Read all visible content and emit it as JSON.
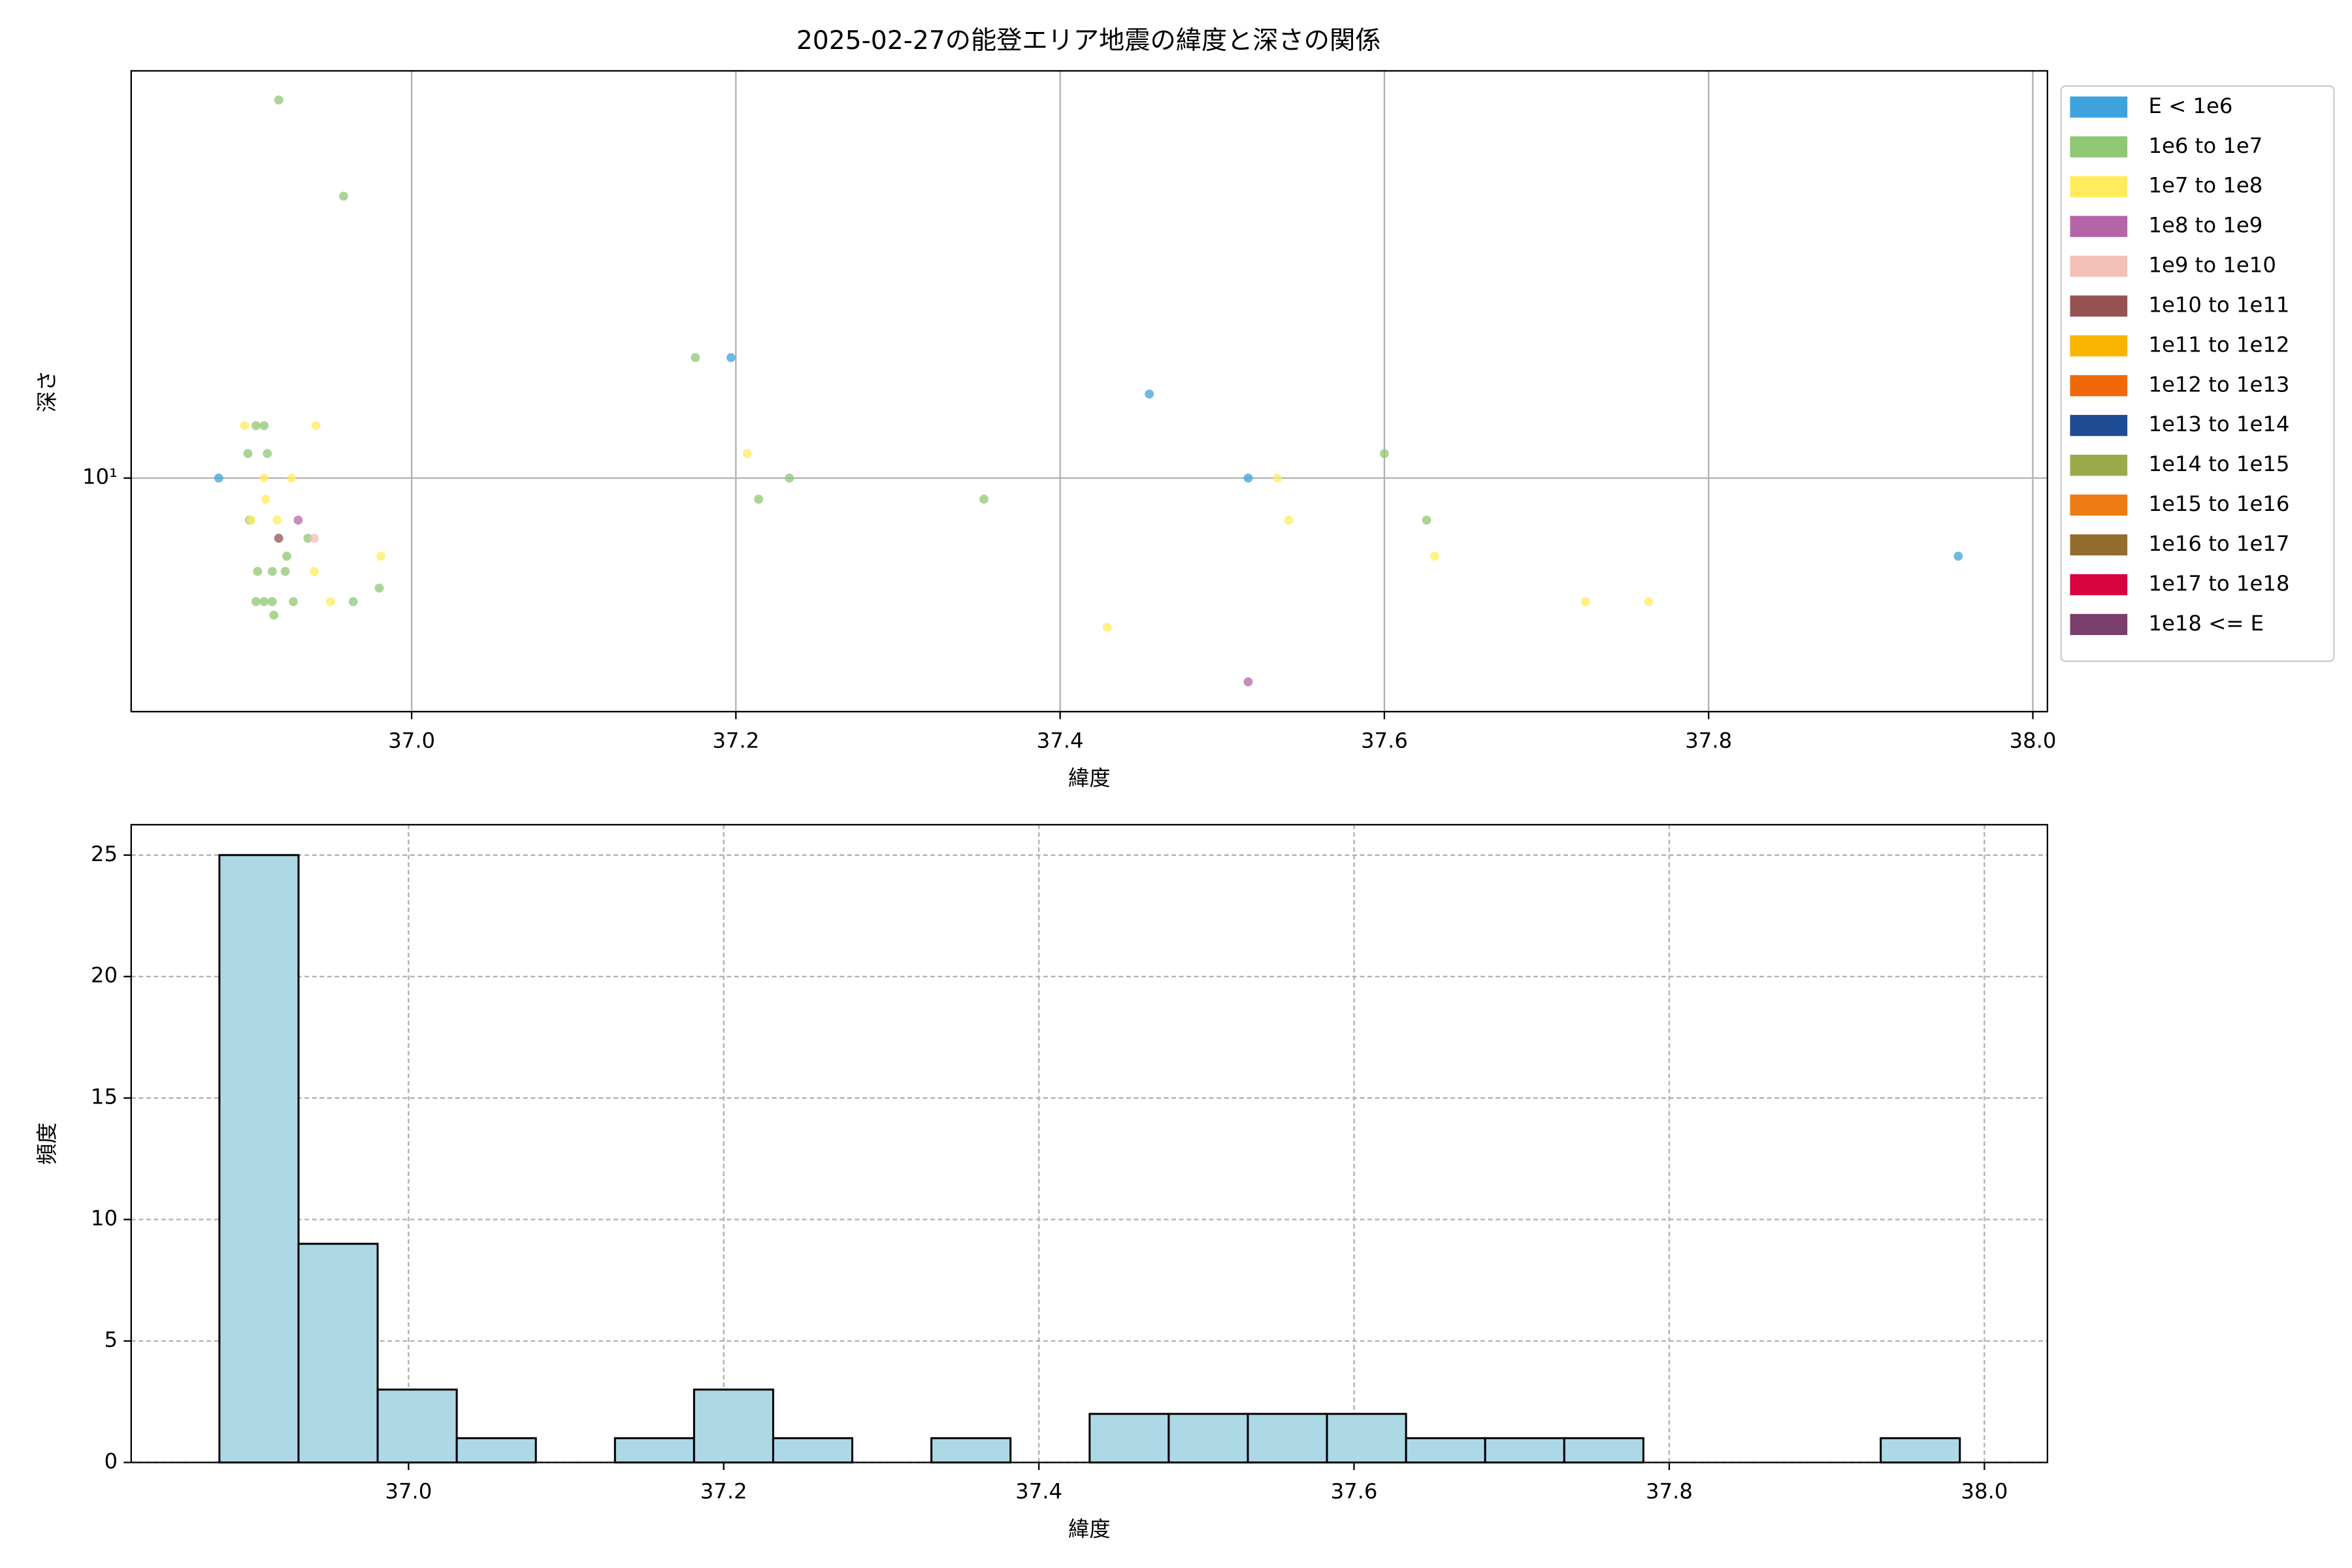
{
  "chart_data": [
    {
      "type": "scatter",
      "title": "2025-02-27の能登エリア地震の緯度と深さの関係",
      "xlabel": "緯度",
      "ylabel": "深さ",
      "xlim": [
        36.827,
        38.009
      ],
      "ylim": [
        3.7,
        56.6
      ],
      "yscale": "log",
      "grid": true,
      "legend": "outside right",
      "xticks": [
        {
          "value": 37.0,
          "label": "37.0"
        },
        {
          "value": 37.2,
          "label": "37.2"
        },
        {
          "value": 37.4,
          "label": "37.4"
        },
        {
          "value": 37.6,
          "label": "37.6"
        },
        {
          "value": 37.8,
          "label": "37.8"
        },
        {
          "value": 38.0,
          "label": "38.0"
        }
      ],
      "yticks": [
        {
          "value": 10,
          "label": "10¹"
        }
      ],
      "series": [
        {
          "name": "E < 1e6",
          "color": "#3ea3dc",
          "x": [
            36.881,
            37.197,
            37.455,
            37.516,
            37.954
          ],
          "values": [
            10.0,
            16.7,
            14.3,
            10.0,
            7.17
          ]
        },
        {
          "name": "1e6 to 1e7",
          "color": "#8fc774",
          "x": [
            36.918,
            36.958,
            37.175,
            36.904,
            36.909,
            36.899,
            36.911,
            37.214,
            37.233,
            37.353,
            37.6,
            37.626,
            36.9,
            36.936,
            36.923,
            36.905,
            36.914,
            36.922,
            36.98,
            36.904,
            36.909,
            36.914,
            36.927,
            36.964,
            36.915
          ],
          "values": [
            50.0,
            33.2,
            16.7,
            12.5,
            12.5,
            11.1,
            11.1,
            9.14,
            10.0,
            9.14,
            11.1,
            8.36,
            8.36,
            7.74,
            7.17,
            6.72,
            6.72,
            6.72,
            6.26,
            5.91,
            5.91,
            5.91,
            5.91,
            5.91,
            5.58
          ]
        },
        {
          "name": "1e7 to 1e8",
          "color": "#ffec5c",
          "x": [
            36.897,
            36.941,
            37.207,
            36.909,
            36.926,
            36.91,
            36.901,
            36.917,
            36.94,
            36.981,
            36.95,
            37.534,
            37.541,
            37.631,
            37.724,
            37.763,
            37.429
          ],
          "values": [
            12.5,
            12.5,
            11.1,
            10.0,
            10.0,
            9.14,
            8.36,
            8.36,
            6.72,
            7.17,
            5.91,
            10.0,
            8.36,
            7.17,
            5.91,
            5.91,
            5.3
          ]
        },
        {
          "name": "1e8 to 1e9",
          "color": "#b565a7",
          "x": [
            36.93,
            37.516
          ],
          "values": [
            8.36,
            4.2
          ]
        },
        {
          "name": "1e9 to 1e10",
          "color": "#f5c0b8",
          "x": [
            36.94
          ],
          "values": [
            7.74
          ]
        },
        {
          "name": "1e10 to 1e11",
          "color": "#955251",
          "x": [
            36.918
          ],
          "values": [
            7.74
          ]
        },
        {
          "name": "1e11 to 1e12",
          "color": "#f7b500",
          "x": [],
          "values": []
        },
        {
          "name": "1e12 to 1e13",
          "color": "#f0680a",
          "x": [],
          "values": []
        },
        {
          "name": "1e13 to 1e14",
          "color": "#1e4c94",
          "x": [],
          "values": []
        },
        {
          "name": "1e14 to 1e15",
          "color": "#9bab4c",
          "x": [],
          "values": []
        },
        {
          "name": "1e15 to 1e16",
          "color": "#ee7b14",
          "x": [],
          "values": []
        },
        {
          "name": "1e16 to 1e17",
          "color": "#946c2e",
          "x": [],
          "values": []
        },
        {
          "name": "1e17 to 1e18",
          "color": "#d9043f",
          "x": [],
          "values": []
        },
        {
          "name": "1e18 <= E",
          "color": "#7a3f6b",
          "x": [],
          "values": []
        }
      ]
    },
    {
      "type": "histogram",
      "xlabel": "緯度",
      "ylabel": "頻度",
      "xlim": [
        36.824,
        38.04
      ],
      "ylim": [
        0,
        26.25
      ],
      "grid": true,
      "color": "#add8e6",
      "edgecolor": "#000000",
      "xticks": [
        {
          "value": 37.0,
          "label": "37.0"
        },
        {
          "value": 37.2,
          "label": "37.2"
        },
        {
          "value": 37.4,
          "label": "37.4"
        },
        {
          "value": 37.6,
          "label": "37.6"
        },
        {
          "value": 37.8,
          "label": "37.8"
        },
        {
          "value": 38.0,
          "label": "38.0"
        }
      ],
      "yticks": [
        0,
        5,
        10,
        15,
        20,
        25
      ],
      "bins": [
        36.88,
        36.9302,
        36.9804,
        37.0306,
        37.0808,
        37.131,
        37.1812,
        37.2314,
        37.2816,
        37.3318,
        37.382,
        37.4322,
        37.4824,
        37.5326,
        37.5828,
        37.633,
        37.6832,
        37.7334,
        37.7836,
        37.8338,
        37.884,
        37.9342,
        37.9844
      ],
      "values": [
        25,
        9,
        3,
        1,
        0,
        1,
        3,
        1,
        0,
        1,
        0,
        2,
        2,
        2,
        2,
        1,
        1,
        1,
        0,
        0,
        0,
        1
      ]
    }
  ]
}
